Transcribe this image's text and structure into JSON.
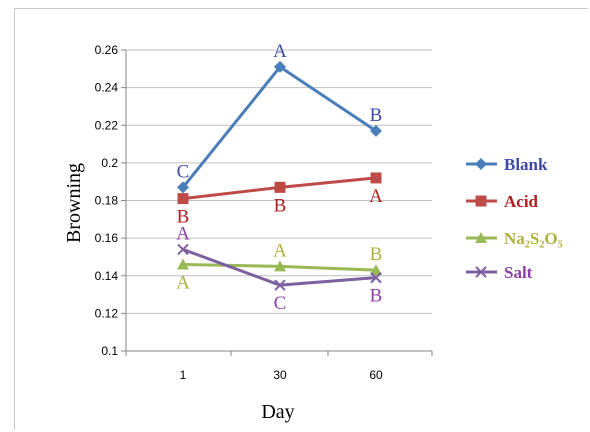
{
  "chart_data": {
    "type": "line",
    "xlabel": "Day",
    "ylabel": "Browning",
    "categories": [
      "1",
      "30",
      "60"
    ],
    "ylim": [
      0.1,
      0.26
    ],
    "yticks": [
      "0.1",
      "0.12",
      "0.14",
      "0.16",
      "0.18",
      "0.2",
      "0.22",
      "0.24",
      "0.26"
    ],
    "grid": true,
    "legend_position": "right",
    "series": [
      {
        "name": "Blank",
        "color": "#4a7ebb",
        "marker": "diamond",
        "values": [
          0.187,
          0.251,
          0.217
        ],
        "letters": [
          "C",
          "A",
          "B"
        ],
        "letter_color": "#3f49a8",
        "letter_side": [
          "above",
          "above",
          "above"
        ]
      },
      {
        "name": "Acid",
        "color": "#be4b48",
        "marker": "square",
        "values": [
          0.181,
          0.187,
          0.192
        ],
        "letters": [
          "B",
          "B",
          "A"
        ],
        "letter_color": "#b02020",
        "letter_side": [
          "below",
          "below",
          "below"
        ]
      },
      {
        "name": "Na₂S₂O₅",
        "color": "#98b954",
        "marker": "triangle",
        "values": [
          0.146,
          0.145,
          0.143
        ],
        "letters": [
          "A",
          "A",
          "B"
        ],
        "letter_color": "#b0b040",
        "letter_side": [
          "below",
          "above",
          "above"
        ]
      },
      {
        "name": "Salt",
        "color": "#7d60a0",
        "marker": "x",
        "values": [
          0.154,
          0.135,
          0.139
        ],
        "letters": [
          "A",
          "C",
          "B"
        ],
        "letter_color": "#8c3fa8",
        "letter_side": [
          "above",
          "below",
          "below"
        ]
      }
    ]
  }
}
